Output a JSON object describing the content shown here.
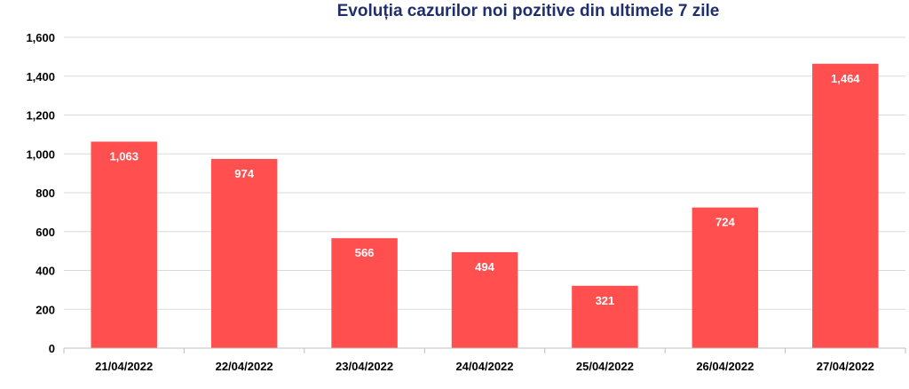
{
  "chart_data": {
    "type": "bar",
    "title": "Evoluția cazurilor noi pozitive din ultimele 7 zile",
    "categories": [
      "21/04/2022",
      "22/04/2022",
      "23/04/2022",
      "24/04/2022",
      "25/04/2022",
      "26/04/2022",
      "27/04/2022"
    ],
    "values": [
      1063,
      974,
      566,
      494,
      321,
      724,
      1464
    ],
    "value_labels": [
      "1,063",
      "974",
      "566",
      "494",
      "321",
      "724",
      "1,464"
    ],
    "ylim": [
      0,
      1600
    ],
    "yticks": [
      0,
      200,
      400,
      600,
      800,
      1000,
      1200,
      1400,
      1600
    ],
    "ytick_labels": [
      "0",
      "200",
      "400",
      "600",
      "800",
      "1,000",
      "1,200",
      "1,400",
      "1,600"
    ],
    "xlabel": "",
    "ylabel": "",
    "grid": true,
    "bar_color": "#ff4f4f",
    "label_color": "#ffffff",
    "title_color": "#1f2f6b"
  }
}
